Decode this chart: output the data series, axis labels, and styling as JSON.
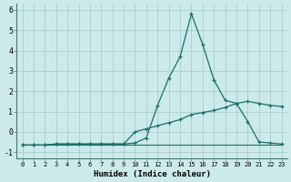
{
  "xlabel": "Humidex (Indice chaleur)",
  "background_color": "#cceaea",
  "line_color": "#1a6e6e",
  "grid_color": "#aacece",
  "xlim": [
    -0.5,
    23.5
  ],
  "ylim": [
    -1.3,
    6.3
  ],
  "yticks": [
    -1,
    0,
    1,
    2,
    3,
    4,
    5,
    6
  ],
  "xticks": [
    0,
    1,
    2,
    3,
    4,
    5,
    6,
    7,
    8,
    9,
    10,
    11,
    12,
    13,
    14,
    15,
    16,
    17,
    18,
    19,
    20,
    21,
    22,
    23
  ],
  "line_peak_y": [
    -0.65,
    -0.65,
    -0.65,
    -0.6,
    -0.6,
    -0.6,
    -0.6,
    -0.6,
    -0.6,
    -0.6,
    -0.55,
    -0.3,
    1.3,
    2.65,
    3.7,
    5.8,
    4.3,
    2.55,
    1.55,
    1.4,
    0.5,
    -0.5,
    -0.55,
    -0.6
  ],
  "line_gradual_y": [
    -0.65,
    -0.65,
    -0.65,
    -0.6,
    -0.6,
    -0.6,
    -0.6,
    -0.6,
    -0.6,
    -0.6,
    0.0,
    0.15,
    0.3,
    0.45,
    0.6,
    0.85,
    0.95,
    1.05,
    1.2,
    1.4,
    1.5,
    1.4,
    1.3,
    1.25
  ],
  "line_flat_y": [
    -0.65,
    -0.65,
    -0.65,
    -0.65,
    -0.65,
    -0.65,
    -0.65,
    -0.65,
    -0.65,
    -0.65,
    -0.65,
    -0.65,
    -0.65,
    -0.65,
    -0.65,
    -0.65,
    -0.65,
    -0.65,
    -0.65,
    -0.65,
    -0.65,
    -0.65,
    -0.65,
    -0.65
  ]
}
